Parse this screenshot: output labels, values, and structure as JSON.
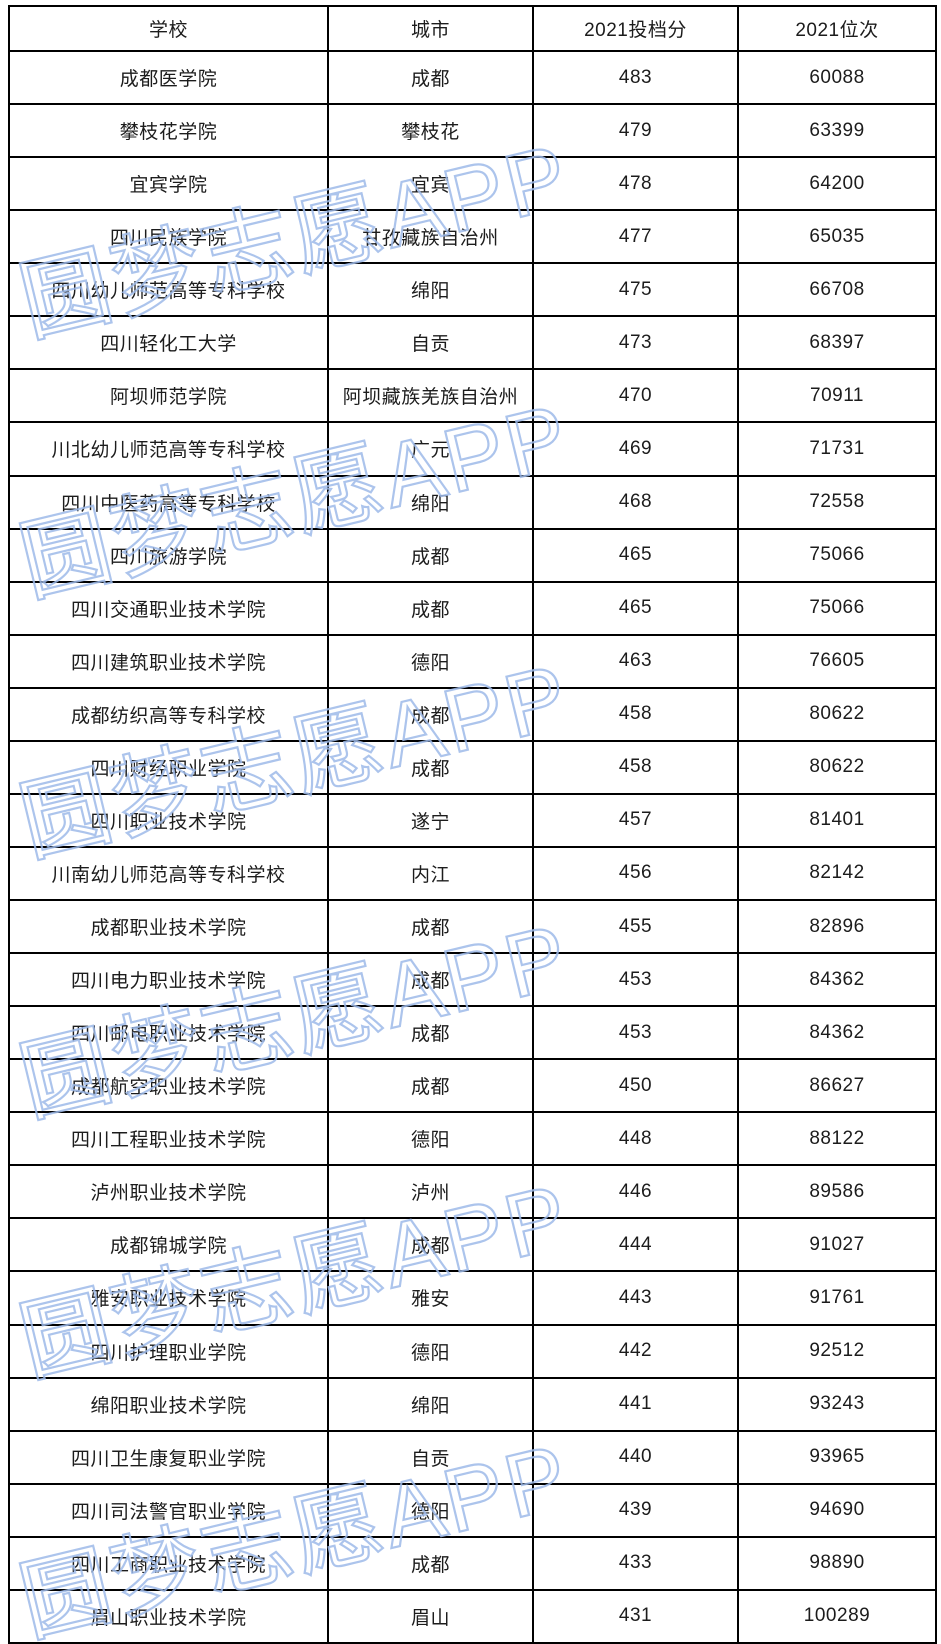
{
  "table": {
    "columns": [
      "学校",
      "城市",
      "2021投档分",
      "2021位次"
    ],
    "rows": [
      [
        "成都医学院",
        "成都",
        "483",
        "60088"
      ],
      [
        "攀枝花学院",
        "攀枝花",
        "479",
        "63399"
      ],
      [
        "宜宾学院",
        "宜宾",
        "478",
        "64200"
      ],
      [
        "四川民族学院",
        "甘孜藏族自治州",
        "477",
        "65035"
      ],
      [
        "四川幼儿师范高等专科学校",
        "绵阳",
        "475",
        "66708"
      ],
      [
        "四川轻化工大学",
        "自贡",
        "473",
        "68397"
      ],
      [
        "阿坝师范学院",
        "阿坝藏族羌族自治州",
        "470",
        "70911"
      ],
      [
        "川北幼儿师范高等专科学校",
        "广元",
        "469",
        "71731"
      ],
      [
        "四川中医药高等专科学校",
        "绵阳",
        "468",
        "72558"
      ],
      [
        "四川旅游学院",
        "成都",
        "465",
        "75066"
      ],
      [
        "四川交通职业技术学院",
        "成都",
        "465",
        "75066"
      ],
      [
        "四川建筑职业技术学院",
        "德阳",
        "463",
        "76605"
      ],
      [
        "成都纺织高等专科学校",
        "成都",
        "458",
        "80622"
      ],
      [
        "四川财经职业学院",
        "成都",
        "458",
        "80622"
      ],
      [
        "四川职业技术学院",
        "遂宁",
        "457",
        "81401"
      ],
      [
        "川南幼儿师范高等专科学校",
        "内江",
        "456",
        "82142"
      ],
      [
        "成都职业技术学院",
        "成都",
        "455",
        "82896"
      ],
      [
        "四川电力职业技术学院",
        "成都",
        "453",
        "84362"
      ],
      [
        "四川邮电职业技术学院",
        "成都",
        "453",
        "84362"
      ],
      [
        "成都航空职业技术学院",
        "成都",
        "450",
        "86627"
      ],
      [
        "四川工程职业技术学院",
        "德阳",
        "448",
        "88122"
      ],
      [
        "泸州职业技术学院",
        "泸州",
        "446",
        "89586"
      ],
      [
        "成都锦城学院",
        "成都",
        "444",
        "91027"
      ],
      [
        "雅安职业技术学院",
        "雅安",
        "443",
        "91761"
      ],
      [
        "四川护理职业学院",
        "德阳",
        "442",
        "92512"
      ],
      [
        "绵阳职业技术学院",
        "绵阳",
        "441",
        "93243"
      ],
      [
        "四川卫生康复职业学院",
        "自贡",
        "440",
        "93965"
      ],
      [
        "四川司法警官职业学院",
        "德阳",
        "439",
        "94690"
      ],
      [
        "四川工商职业技术学院",
        "成都",
        "433",
        "98890"
      ],
      [
        "眉山职业技术学院",
        "眉山",
        "431",
        "100289"
      ]
    ]
  },
  "watermark": {
    "text": "圆梦志愿APP",
    "stroke_color": "#9ebae9"
  }
}
